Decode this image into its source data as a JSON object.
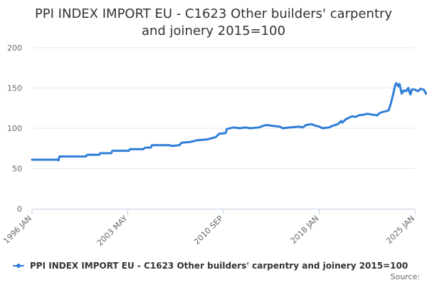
{
  "chart_data": {
    "type": "line",
    "title": "PPI INDEX IMPORT EU - C1623 Other builders' carpentry and joinery 2015=100",
    "x_tick_labels": [
      "1996 JAN",
      "2003 MAY",
      "2010 SEP",
      "2018 JAN",
      "2025 JAN"
    ],
    "y_ticks": [
      0,
      50,
      100,
      150,
      200
    ],
    "ylim": [
      0,
      200
    ],
    "xlim": [
      "1996-01",
      "2025-01"
    ],
    "grid": true,
    "legend_position": "bottom",
    "series": [
      {
        "name": "PPI INDEX IMPORT EU - C1623 Other builders' carpentry and joinery 2015=100",
        "color": "#2f7ed8",
        "points": [
          [
            "1996-01",
            61
          ],
          [
            "1997-12",
            61
          ],
          [
            "1998-01",
            60
          ],
          [
            "1998-02",
            65
          ],
          [
            "2000-02",
            65
          ],
          [
            "2000-03",
            67
          ],
          [
            "2001-02",
            67
          ],
          [
            "2001-03",
            69
          ],
          [
            "2002-01",
            69
          ],
          [
            "2002-02",
            72
          ],
          [
            "2003-05",
            72
          ],
          [
            "2003-06",
            74
          ],
          [
            "2004-06",
            74
          ],
          [
            "2004-08",
            76
          ],
          [
            "2005-01",
            76
          ],
          [
            "2005-02",
            79
          ],
          [
            "2006-06",
            79
          ],
          [
            "2006-08",
            78
          ],
          [
            "2007-03",
            79
          ],
          [
            "2007-05",
            82
          ],
          [
            "2008-01",
            83
          ],
          [
            "2008-07",
            85
          ],
          [
            "2009-04",
            86
          ],
          [
            "2009-12",
            89
          ],
          [
            "2010-03",
            93
          ],
          [
            "2010-09",
            94
          ],
          [
            "2010-10",
            99
          ],
          [
            "2011-04",
            101
          ],
          [
            "2011-10",
            100
          ],
          [
            "2012-03",
            101
          ],
          [
            "2012-07",
            100
          ],
          [
            "2013-03",
            101
          ],
          [
            "2013-07",
            103
          ],
          [
            "2013-10",
            104
          ],
          [
            "2014-04",
            103
          ],
          [
            "2014-10",
            102
          ],
          [
            "2015-01",
            100
          ],
          [
            "2015-07",
            101
          ],
          [
            "2016-04",
            102
          ],
          [
            "2016-07",
            101
          ],
          [
            "2016-10",
            104
          ],
          [
            "2017-03",
            105
          ],
          [
            "2017-07",
            103
          ],
          [
            "2017-10",
            102
          ],
          [
            "2018-01",
            100
          ],
          [
            "2018-07",
            101
          ],
          [
            "2018-10",
            103
          ],
          [
            "2019-03",
            105
          ],
          [
            "2019-06",
            109
          ],
          [
            "2019-07",
            107
          ],
          [
            "2019-10",
            111
          ],
          [
            "2020-01",
            113
          ],
          [
            "2020-04",
            115
          ],
          [
            "2020-07",
            114
          ],
          [
            "2020-10",
            116
          ],
          [
            "2021-03",
            117
          ],
          [
            "2021-06",
            118
          ],
          [
            "2021-10",
            117
          ],
          [
            "2022-03",
            116
          ],
          [
            "2022-04",
            118
          ],
          [
            "2022-07",
            120
          ],
          [
            "2022-10",
            121
          ],
          [
            "2023-01",
            122
          ],
          [
            "2023-03",
            130
          ],
          [
            "2023-05",
            141
          ],
          [
            "2023-07",
            153
          ],
          [
            "2023-08",
            156
          ],
          [
            "2023-10",
            152
          ],
          [
            "2023-11",
            155
          ],
          [
            "2024-01",
            143
          ],
          [
            "2024-03",
            147
          ],
          [
            "2024-05",
            146
          ],
          [
            "2024-07",
            150
          ],
          [
            "2024-08",
            145
          ],
          [
            "2024-09",
            142
          ],
          [
            "2024-10",
            148
          ],
          [
            "2025-01",
            148
          ],
          [
            "2025-04",
            146
          ],
          [
            "2025-06",
            149
          ],
          [
            "2025-09",
            148
          ],
          [
            "2025-11",
            143
          ],
          [
            "2026-01",
            143
          ]
        ]
      }
    ]
  },
  "source_label": "Source:"
}
